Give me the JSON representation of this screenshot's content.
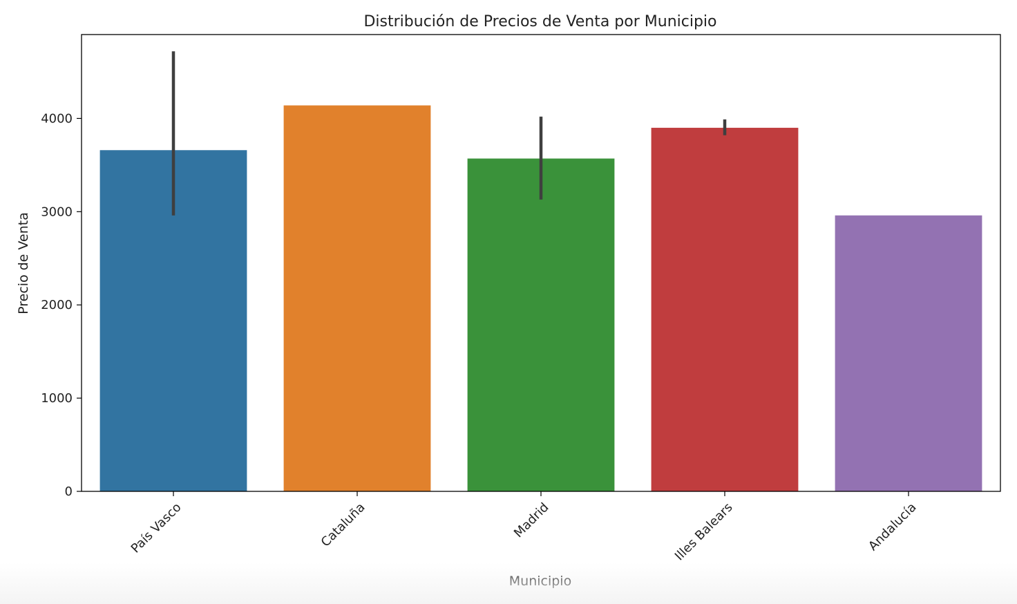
{
  "chart_data": {
    "type": "bar",
    "title": "Distribución de Precios de Venta por Municipio",
    "xlabel": "Municipio",
    "ylabel": "Precio de Venta",
    "categories": [
      "País Vasco",
      "Cataluña",
      "Madrid",
      "Illes Balears",
      "Andalucía"
    ],
    "values": [
      3660,
      4140,
      3570,
      3900,
      2960
    ],
    "error_low": [
      2960,
      null,
      3130,
      3820,
      null
    ],
    "error_high": [
      4720,
      null,
      4020,
      3990,
      null
    ],
    "colors": [
      "#3274a1",
      "#e1812c",
      "#3a923a",
      "#c03d3e",
      "#9372b2"
    ],
    "error_color": "#3f3f3f",
    "ylim": [
      0,
      4900
    ],
    "yticks": [
      0,
      1000,
      2000,
      3000,
      4000
    ],
    "ytick_labels": [
      "0",
      "1000",
      "2000",
      "3000",
      "4000"
    ],
    "grid": false,
    "legend": "none"
  }
}
